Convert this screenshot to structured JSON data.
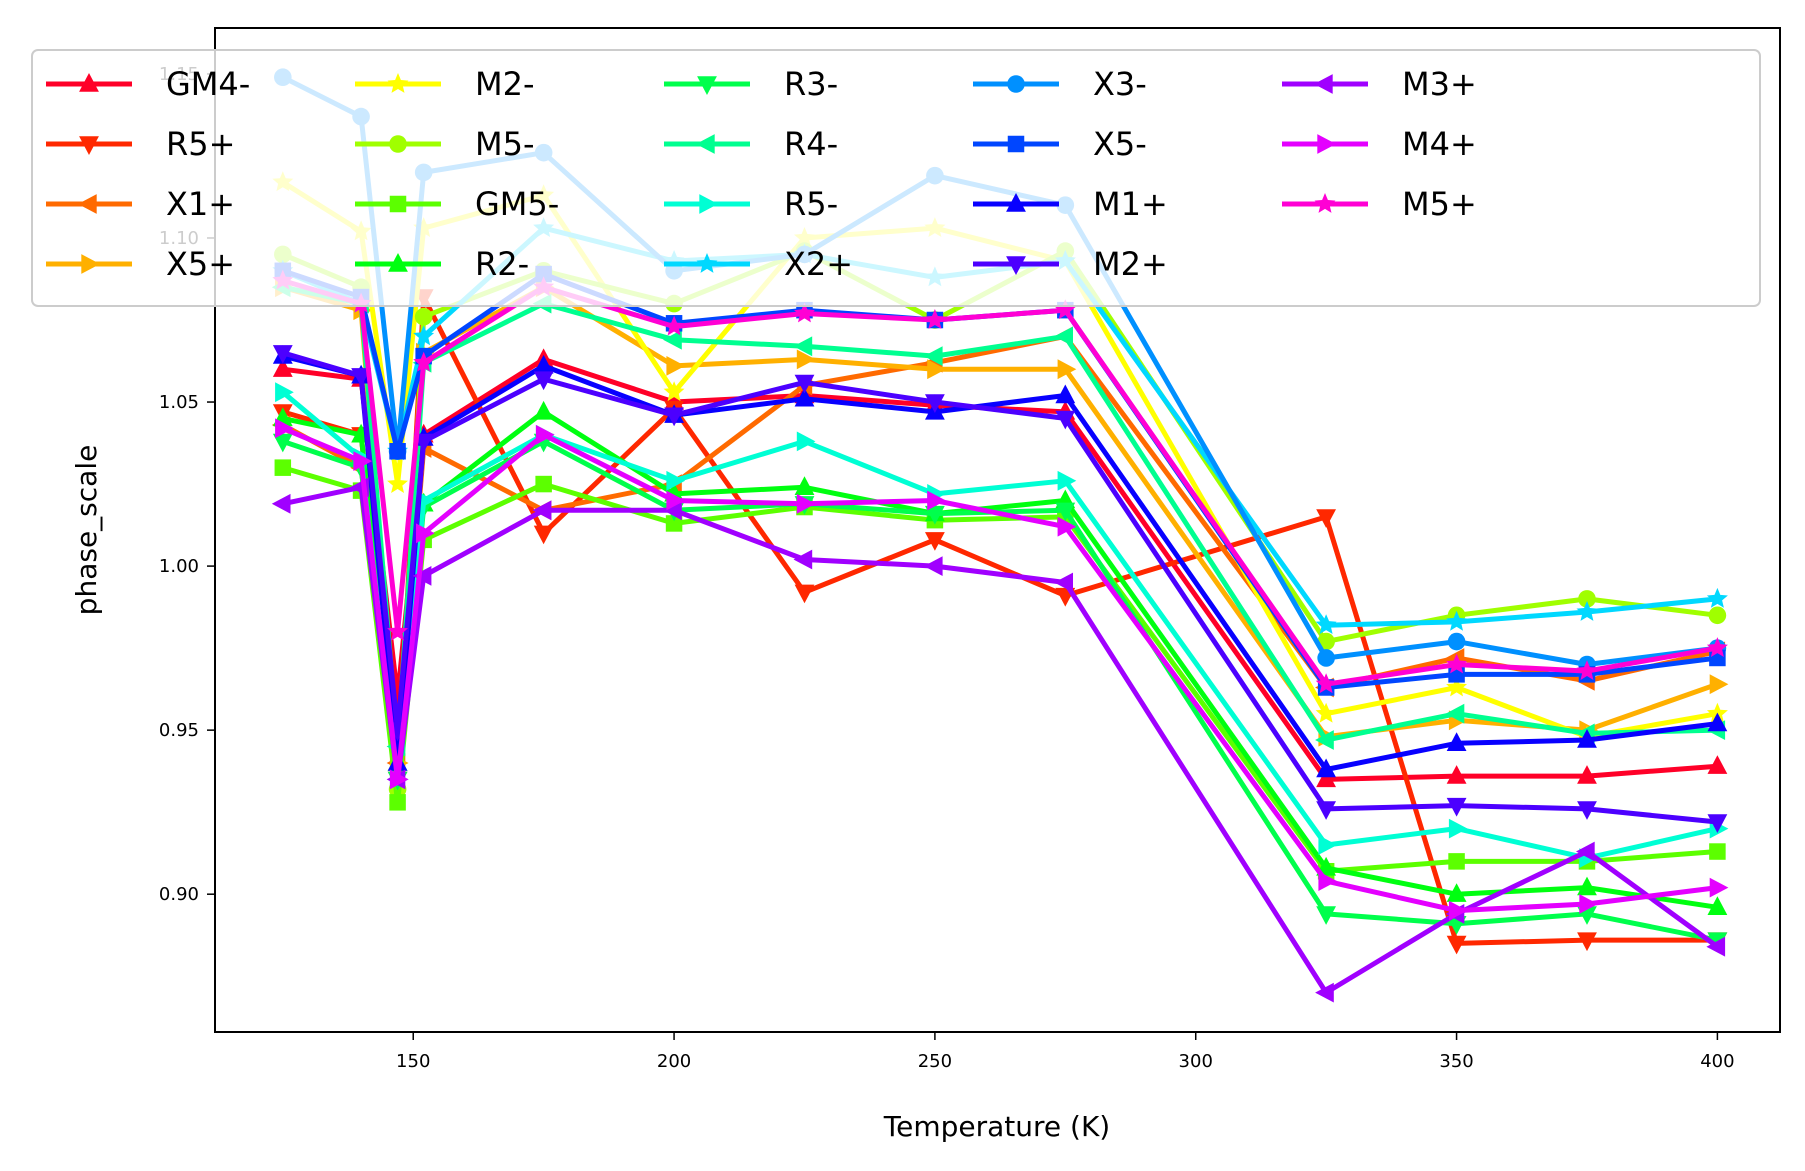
{
  "chart_data": {
    "type": "line",
    "title": "",
    "xlabel": "Temperature (K)",
    "ylabel": "phase_scale",
    "xlim": [
      112,
      412
    ],
    "ylim": [
      0.858,
      1.164
    ],
    "xticks": [
      150,
      200,
      250,
      300,
      350,
      400
    ],
    "yticks": [
      0.9,
      0.95,
      1.0,
      1.05,
      1.1,
      1.15
    ],
    "ytick_labels": [
      "0.90",
      "0.95",
      "1.00",
      "1.05",
      "1.10",
      "1.15"
    ],
    "grid": false,
    "legend": {
      "placement": "top",
      "columns": 6
    },
    "x": [
      125,
      140,
      147,
      152,
      175,
      200,
      225,
      250,
      275,
      325,
      350,
      375,
      400
    ],
    "series": [
      {
        "name": "GM4-",
        "color": "#ff0028",
        "marker": "triangle-up",
        "values": [
          1.06,
          1.057,
          0.96,
          1.04,
          1.063,
          1.05,
          1.052,
          1.049,
          1.047,
          0.935,
          0.936,
          0.936,
          0.939
        ]
      },
      {
        "name": "R5+",
        "color": "#ff2800",
        "marker": "triangle-down",
        "values": [
          1.047,
          1.04,
          0.935,
          1.082,
          1.01,
          1.048,
          0.992,
          1.008,
          0.991,
          1.015,
          0.885,
          0.886,
          0.886
        ]
      },
      {
        "name": "X1+",
        "color": "#ff6a00",
        "marker": "triangle-left",
        "values": [
          1.043,
          1.03,
          0.94,
          1.036,
          1.017,
          1.025,
          1.055,
          1.062,
          1.07,
          0.963,
          0.972,
          0.965,
          0.974
        ]
      },
      {
        "name": "X5+",
        "color": "#ffb000",
        "marker": "triangle-right",
        "values": [
          1.085,
          1.078,
          0.94,
          1.065,
          1.085,
          1.061,
          1.063,
          1.06,
          1.06,
          0.948,
          0.953,
          0.95,
          0.964
        ]
      },
      {
        "name": "M2-",
        "color": "#ffff00",
        "marker": "star",
        "values": [
          1.117,
          1.102,
          1.025,
          1.103,
          1.113,
          1.053,
          1.1,
          1.103,
          1.093,
          0.955,
          0.963,
          0.948,
          0.955
        ]
      },
      {
        "name": "M5-",
        "color": "#a0ff00",
        "marker": "circle",
        "values": [
          1.095,
          1.085,
          0.932,
          1.076,
          1.09,
          1.08,
          1.096,
          1.075,
          1.096,
          0.977,
          0.985,
          0.99,
          0.985
        ]
      },
      {
        "name": "GM5-",
        "color": "#5cff00",
        "marker": "square",
        "values": [
          1.03,
          1.023,
          0.928,
          1.008,
          1.025,
          1.013,
          1.018,
          1.014,
          1.015,
          0.907,
          0.91,
          0.91,
          0.913
        ]
      },
      {
        "name": "R2-",
        "color": "#00ff10",
        "marker": "triangle-up",
        "values": [
          1.045,
          1.04,
          0.94,
          1.019,
          1.047,
          1.022,
          1.024,
          1.016,
          1.02,
          0.908,
          0.9,
          0.902,
          0.896
        ]
      },
      {
        "name": "R3-",
        "color": "#00ff4c",
        "marker": "triangle-down",
        "values": [
          1.038,
          1.03,
          0.935,
          1.018,
          1.038,
          1.017,
          1.019,
          1.016,
          1.017,
          0.894,
          0.891,
          0.894,
          0.886
        ]
      },
      {
        "name": "R4-",
        "color": "#00ff90",
        "marker": "triangle-left",
        "values": [
          1.085,
          1.08,
          0.945,
          1.062,
          1.08,
          1.069,
          1.067,
          1.064,
          1.07,
          0.947,
          0.955,
          0.949,
          0.95
        ]
      },
      {
        "name": "R5-",
        "color": "#00ffd4",
        "marker": "triangle-right",
        "values": [
          1.053,
          1.033,
          0.935,
          1.02,
          1.04,
          1.026,
          1.038,
          1.022,
          1.026,
          0.915,
          0.92,
          0.911,
          0.92
        ]
      },
      {
        "name": "X2+",
        "color": "#00d8ff",
        "marker": "star",
        "values": [
          1.09,
          1.08,
          1.035,
          1.07,
          1.103,
          1.093,
          1.095,
          1.088,
          1.093,
          0.982,
          0.983,
          0.986,
          0.99
        ]
      },
      {
        "name": "X3-",
        "color": "#0090ff",
        "marker": "circle",
        "values": [
          1.149,
          1.137,
          1.035,
          1.12,
          1.126,
          1.09,
          1.095,
          1.119,
          1.11,
          0.972,
          0.977,
          0.97,
          0.975
        ]
      },
      {
        "name": "X5-",
        "color": "#0046ff",
        "marker": "square",
        "values": [
          1.09,
          1.082,
          1.035,
          1.064,
          1.089,
          1.074,
          1.078,
          1.075,
          1.078,
          0.963,
          0.967,
          0.967,
          0.972
        ]
      },
      {
        "name": "M1+",
        "color": "#0800ff",
        "marker": "triangle-up",
        "values": [
          1.064,
          1.058,
          0.94,
          1.039,
          1.061,
          1.046,
          1.051,
          1.047,
          1.052,
          0.938,
          0.946,
          0.947,
          0.952
        ]
      },
      {
        "name": "M2+",
        "color": "#4c00ff",
        "marker": "triangle-down",
        "values": [
          1.065,
          1.058,
          0.95,
          1.038,
          1.057,
          1.046,
          1.056,
          1.05,
          1.045,
          0.926,
          0.927,
          0.926,
          0.922
        ]
      },
      {
        "name": "M3+",
        "color": "#a000ff",
        "marker": "triangle-left",
        "values": [
          1.019,
          1.024,
          0.935,
          0.997,
          1.017,
          1.017,
          1.002,
          1.0,
          0.995,
          0.87,
          0.894,
          0.913,
          0.884
        ]
      },
      {
        "name": "M4+",
        "color": "#e400ff",
        "marker": "triangle-right",
        "values": [
          1.042,
          1.032,
          0.935,
          1.01,
          1.04,
          1.02,
          1.019,
          1.02,
          1.012,
          0.904,
          0.895,
          0.897,
          0.902
        ]
      },
      {
        "name": "M5+",
        "color": "#ff00d4",
        "marker": "star",
        "values": [
          1.087,
          1.08,
          0.98,
          1.062,
          1.085,
          1.073,
          1.077,
          1.075,
          1.078,
          0.964,
          0.97,
          0.968,
          0.975
        ]
      }
    ]
  }
}
